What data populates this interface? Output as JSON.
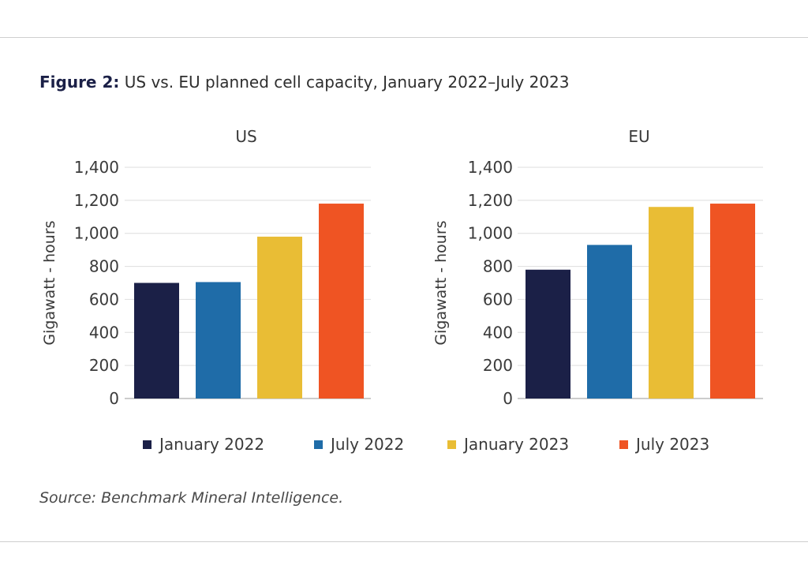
{
  "figure": {
    "title_lead": "Figure 2:",
    "title_rest": " US vs. EU planned cell capacity, January 2022–July 2023",
    "source": "Source: Benchmark Mineral Intelligence."
  },
  "legend": {
    "items": [
      {
        "label": "January 2022",
        "color": "#1b2047"
      },
      {
        "label": "July 2022",
        "color": "#1f6ca8"
      },
      {
        "label": "January 2023",
        "color": "#e9bd35"
      },
      {
        "label": "July 2023",
        "color": "#ef5423"
      }
    ]
  },
  "chart_data": [
    {
      "type": "bar",
      "title": "US",
      "ylabel": "Gigawatt - hours",
      "categories": [
        "January 2022",
        "July 2022",
        "January 2023",
        "July 2023"
      ],
      "values": [
        700,
        705,
        980,
        1180
      ],
      "colors": [
        "#1b2047",
        "#1f6ca8",
        "#e9bd35",
        "#ef5423"
      ],
      "ylim": [
        0,
        1400
      ],
      "yticks": [
        0,
        200,
        400,
        600,
        800,
        1000,
        1200,
        1400
      ],
      "ytick_labels": [
        "0",
        "200",
        "400",
        "600",
        "800",
        "1,000",
        "1,200",
        "1,400"
      ],
      "grid": true
    },
    {
      "type": "bar",
      "title": "EU",
      "ylabel": "Gigawatt - hours",
      "categories": [
        "January 2022",
        "July 2022",
        "January 2023",
        "July 2023"
      ],
      "values": [
        780,
        930,
        1160,
        1180
      ],
      "colors": [
        "#1b2047",
        "#1f6ca8",
        "#e9bd35",
        "#ef5423"
      ],
      "ylim": [
        0,
        1400
      ],
      "yticks": [
        0,
        200,
        400,
        600,
        800,
        1000,
        1200,
        1400
      ],
      "ytick_labels": [
        "0",
        "200",
        "400",
        "600",
        "800",
        "1,000",
        "1,200",
        "1,400"
      ],
      "grid": true
    }
  ]
}
